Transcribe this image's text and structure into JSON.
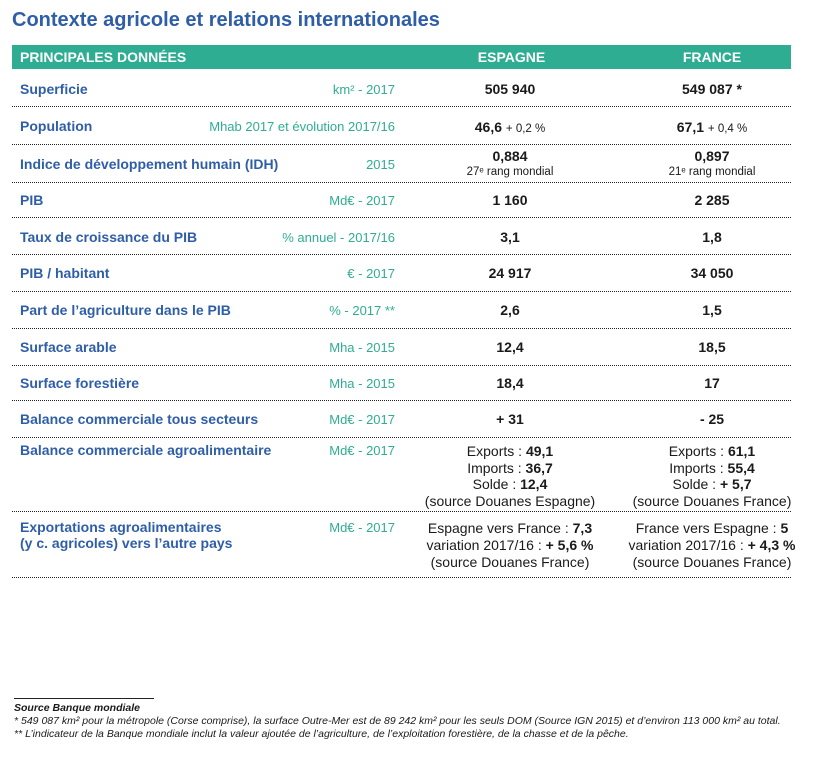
{
  "title": "Contexte agricole et relations internationales",
  "header": {
    "col1": "PRINCIPALES DONNÉES",
    "col2": "ESPAGNE",
    "col3": "FRANCE"
  },
  "rows": [
    {
      "label": "Superficie",
      "unit": "km² - 2017",
      "es": "505 940",
      "fr": "549 087 *"
    },
    {
      "label": "Population",
      "unit": "Mhab 2017 et évolution 2017/16",
      "es": "46,6",
      "es_note": "+ 0,2 %",
      "fr": "67,1",
      "fr_note": "+ 0,4 %"
    },
    {
      "label": "Indice de développement humain (IDH)",
      "unit": "2015",
      "es": "0,884",
      "es_sub": "27ᵉ rang mondial",
      "fr": "0,897",
      "fr_sub": "21ᵉ rang mondial"
    },
    {
      "label": "PIB",
      "unit": "Md€ - 2017",
      "es": "1 160",
      "fr": "2 285"
    },
    {
      "label": "Taux de croissance du PIB",
      "unit": "% annuel - 2017/16",
      "es": "3,1",
      "fr": "1,8"
    },
    {
      "label": "PIB / habitant",
      "unit": "€ - 2017",
      "es": "24 917",
      "fr": "34 050"
    },
    {
      "label": "Part de l’agriculture dans le PIB",
      "unit": "% - 2017 **",
      "es": "2,6",
      "fr": "1,5"
    },
    {
      "label": "Surface arable",
      "unit": "Mha - 2015",
      "es": "12,4",
      "fr": "18,5"
    },
    {
      "label": "Surface forestière",
      "unit": "Mha - 2015",
      "es": "18,4",
      "fr": "17"
    },
    {
      "label": "Balance commerciale tous secteurs",
      "unit": "Md€ - 2017",
      "es": "+ 31",
      "fr": "- 25"
    },
    {
      "label": "Balance commerciale  agroalimentaire",
      "unit": "Md€ - 2017",
      "es_lines": [
        [
          "Exports : ",
          "49,1"
        ],
        [
          "Imports : ",
          "36,7"
        ],
        [
          "Solde : ",
          "12,4"
        ],
        [
          "(source Douanes Espagne)",
          ""
        ]
      ],
      "fr_lines": [
        [
          "Exports : ",
          "61,1"
        ],
        [
          "Imports : ",
          "55,4"
        ],
        [
          "Solde : ",
          "+ 5,7"
        ],
        [
          "(source Douanes France)",
          ""
        ]
      ]
    },
    {
      "label": "Exportations agroalimentaires",
      "label2": "(y c. agricoles) vers l’autre pays",
      "unit": "Md€ - 2017",
      "es_lines": [
        [
          "Espagne vers France : ",
          "7,3"
        ],
        [
          "variation 2017/16 : ",
          "+ 5,6 %"
        ],
        [
          "(source Douanes France)",
          ""
        ]
      ],
      "fr_lines": [
        [
          "France vers Espagne : ",
          "5"
        ],
        [
          "variation 2017/16 : ",
          "+ 4,3 %"
        ],
        [
          "(source Douanes France)",
          ""
        ]
      ]
    }
  ],
  "footnotes": {
    "source": "Source Banque mondiale",
    "note1": "* 549 087 km² pour la métropole (Corse comprise), la surface Outre-Mer est de 89 242 km² pour les seuls DOM (Source IGN 2015) et d’environ 113 000 km² au total.",
    "note2": "** L’indicateur de la Banque mondiale inclut la valeur ajoutée de l’agriculture, de l’exploitation forestière, de la chasse et de la pêche."
  }
}
